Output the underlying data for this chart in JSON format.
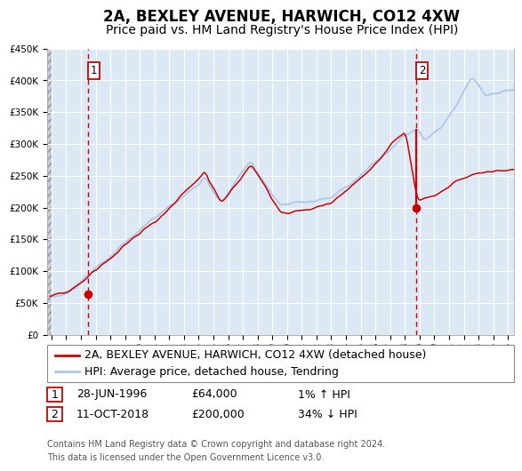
{
  "title": "2A, BEXLEY AVENUE, HARWICH, CO12 4XW",
  "subtitle": "Price paid vs. HM Land Registry's House Price Index (HPI)",
  "ylim": [
    0,
    450000
  ],
  "yticks": [
    0,
    50000,
    100000,
    150000,
    200000,
    250000,
    300000,
    350000,
    400000,
    450000
  ],
  "ytick_labels": [
    "£0",
    "£50K",
    "£100K",
    "£150K",
    "£200K",
    "£250K",
    "£300K",
    "£350K",
    "£400K",
    "£450K"
  ],
  "xlim_start": 1993.7,
  "xlim_end": 2025.4,
  "xticks": [
    1994,
    1995,
    1996,
    1997,
    1998,
    1999,
    2000,
    2001,
    2002,
    2003,
    2004,
    2005,
    2006,
    2007,
    2008,
    2009,
    2010,
    2011,
    2012,
    2013,
    2014,
    2015,
    2016,
    2017,
    2018,
    2019,
    2020,
    2021,
    2022,
    2023,
    2024,
    2025
  ],
  "hpi_color": "#aec6e8",
  "price_color": "#cc0000",
  "marker_color": "#cc0000",
  "vline_color": "#cc0000",
  "plot_bg_color": "#dce9f5",
  "grid_color": "#ffffff",
  "title_fontsize": 12,
  "subtitle_fontsize": 10,
  "tick_fontsize": 7.5,
  "legend_fontsize": 9,
  "ann_fontsize": 9,
  "footer_fontsize": 7,
  "sale1_year": 1996.49,
  "sale1_price": 64000,
  "sale2_year": 2018.78,
  "sale2_price": 200000,
  "sale1_date": "28-JUN-1996",
  "sale1_pct": "1%",
  "sale1_dir": "↑",
  "sale2_date": "11-OCT-2018",
  "sale2_pct": "34%",
  "sale2_dir": "↓",
  "legend1_label": "2A, BEXLEY AVENUE, HARWICH, CO12 4XW (detached house)",
  "legend2_label": "HPI: Average price, detached house, Tendring",
  "footer1": "Contains HM Land Registry data © Crown copyright and database right 2024.",
  "footer2": "This data is licensed under the Open Government Licence v3.0."
}
